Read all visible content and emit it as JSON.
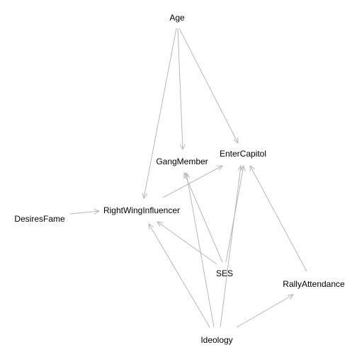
{
  "diagram": {
    "type": "directed-graph",
    "edge_color": "#b8b8b8",
    "label_color": "#000000",
    "background": "#ffffff",
    "nodes": [
      {
        "id": "age",
        "label": "Age"
      },
      {
        "id": "gang",
        "label": "GangMember"
      },
      {
        "id": "enter",
        "label": "EnterCapitol"
      },
      {
        "id": "rwi",
        "label": "RightWingInfluencer"
      },
      {
        "id": "fame",
        "label": "DesiresFame"
      },
      {
        "id": "ses",
        "label": "SES"
      },
      {
        "id": "rally",
        "label": "RallyAttendance"
      },
      {
        "id": "ideology",
        "label": "Ideology"
      }
    ],
    "edges": [
      {
        "from": "age",
        "to": "rwi"
      },
      {
        "from": "age",
        "to": "gang"
      },
      {
        "from": "age",
        "to": "enter"
      },
      {
        "from": "fame",
        "to": "rwi"
      },
      {
        "from": "rwi",
        "to": "enter"
      },
      {
        "from": "ses",
        "to": "rwi"
      },
      {
        "from": "ses",
        "to": "gang"
      },
      {
        "from": "ses",
        "to": "enter"
      },
      {
        "from": "ideology",
        "to": "rwi"
      },
      {
        "from": "ideology",
        "to": "gang"
      },
      {
        "from": "ideology",
        "to": "enter"
      },
      {
        "from": "ideology",
        "to": "rally"
      },
      {
        "from": "rally",
        "to": "enter"
      }
    ]
  }
}
